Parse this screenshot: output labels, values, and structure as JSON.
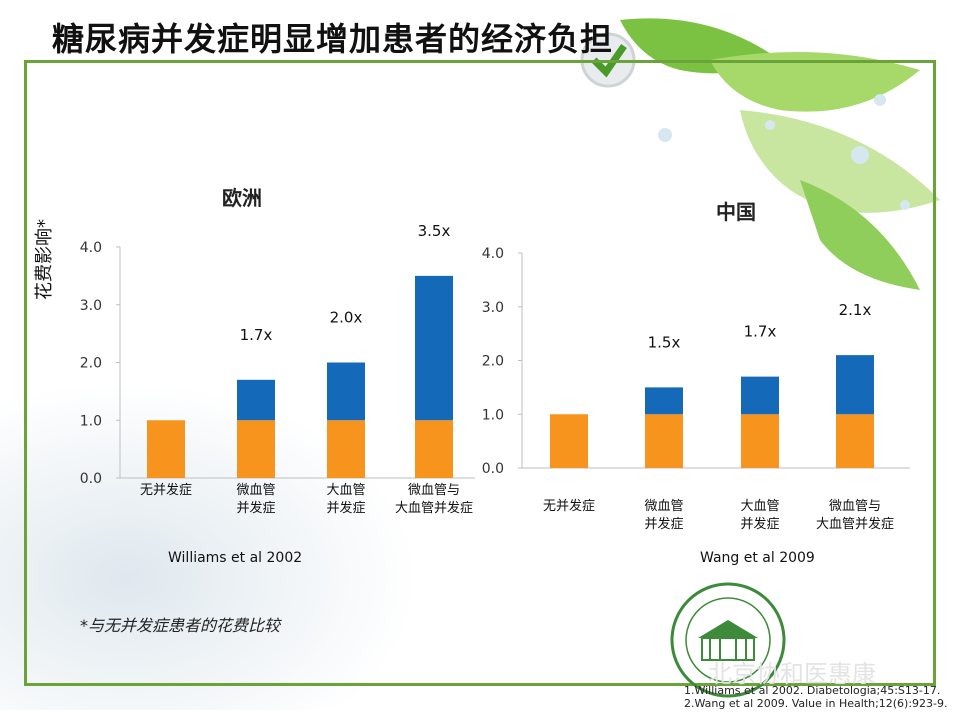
{
  "slide": {
    "title": "糖尿病并发症明显增加患者的经济负担",
    "y_axis_label": "花费影响*",
    "footnote": "*与无并发症患者的花费比较",
    "watermark": "北京协和医惠康",
    "references": [
      "1.Williams et al 2002. Diabetologia;45:S13-17.",
      "2.Wang et al 2009. Value in Health;12(6):923-9."
    ]
  },
  "colors": {
    "base": "#F7941D",
    "excess": "#1469B8",
    "frame": "#6AA33A"
  },
  "chart_data": [
    {
      "type": "bar",
      "title": "欧洲",
      "source": "Williams et al 2002",
      "categories": [
        "无并发症",
        "微血管并发症",
        "大血管并发症",
        "微血管与大血管并发症"
      ],
      "category_lines": [
        [
          "无并发症"
        ],
        [
          "微血管",
          "并发症"
        ],
        [
          "大血管",
          "并发症"
        ],
        [
          "微血管与",
          "大血管并发症"
        ]
      ],
      "series": [
        {
          "values": [
            1.0,
            1.0,
            1.0,
            1.0
          ]
        },
        {
          "values": [
            0,
            0.7,
            1.0,
            2.5
          ]
        }
      ],
      "totals": [
        1.0,
        1.7,
        2.0,
        3.5
      ],
      "labels": [
        "",
        "1.7x",
        "2.0x",
        "3.5x"
      ],
      "ylim": [
        0,
        4
      ],
      "yticks": [
        "0.0",
        "1.0",
        "2.0",
        "3.0",
        "4.0"
      ]
    },
    {
      "type": "bar",
      "title": "中国",
      "source": "Wang et al 2009",
      "categories": [
        "无并发症",
        "微血管并发症",
        "大血管并发症",
        "微血管与大血管并发症"
      ],
      "category_lines": [
        [
          "无并发症"
        ],
        [
          "微血管",
          "并发症"
        ],
        [
          "大血管",
          "并发症"
        ],
        [
          "微血管与",
          "大血管并发症"
        ]
      ],
      "series": [
        {
          "values": [
            1.0,
            1.0,
            1.0,
            1.0
          ]
        },
        {
          "values": [
            0,
            0.5,
            0.7,
            1.1
          ]
        }
      ],
      "totals": [
        1.0,
        1.5,
        1.7,
        2.1
      ],
      "labels": [
        "",
        "1.5x",
        "1.7x",
        "2.1x"
      ],
      "ylim": [
        0,
        4
      ],
      "yticks": [
        "0.0",
        "1.0",
        "2.0",
        "3.0",
        "4.0"
      ]
    }
  ]
}
